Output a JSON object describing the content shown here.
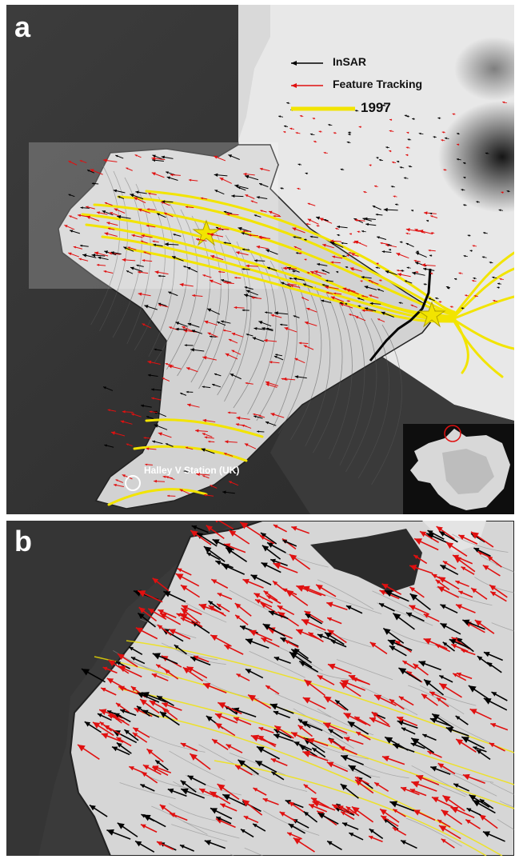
{
  "panels": {
    "a": {
      "label": "a"
    },
    "b": {
      "label": "b"
    }
  },
  "legend": {
    "insar": {
      "label": "InSAR",
      "color": "#000000"
    },
    "feature_tracking": {
      "label": "Feature Tracking",
      "color": "#e01010"
    },
    "year": {
      "label": "1997",
      "color": "#f2e400"
    }
  },
  "places": {
    "station": "Halley V Station (UK)"
  },
  "colors": {
    "ice_shelf": "#dcdcdc",
    "ocean": "#2e2e2e",
    "sea_ice": "#4a4a4a",
    "flowline": "#f2e400",
    "vector_insar": "#000000",
    "vector_feature": "#e01010",
    "inset_marker": "#e01010"
  }
}
